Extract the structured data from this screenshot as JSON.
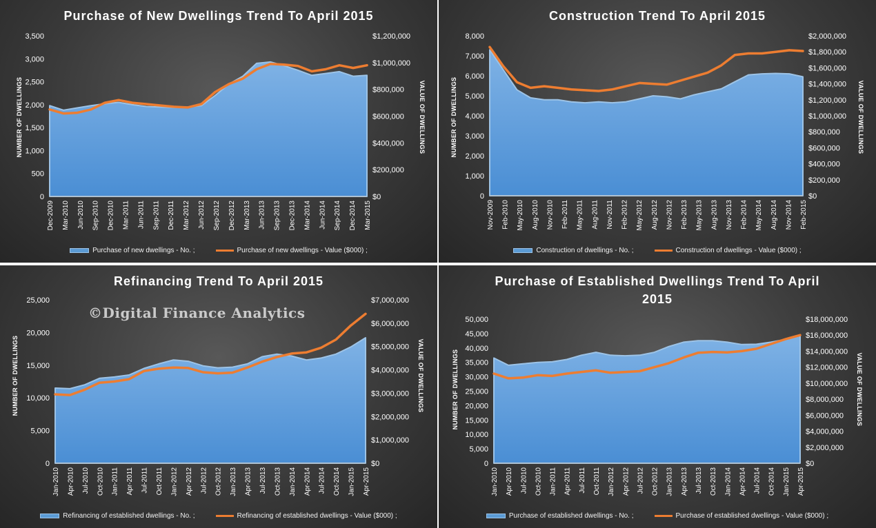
{
  "watermark": "©Digital Finance Analytics",
  "colors": {
    "area": "#5b9bd5",
    "area_edge": "#9dc3e6",
    "line": "#ed7d31",
    "text": "#ffffff"
  },
  "chart_data": [
    {
      "type": "area",
      "title": "Purchase of New Dwellings Trend To April 2015",
      "ylabel": "NUMBER OF DWELLINGS",
      "y2label": "VALUE OF DWELLINGS",
      "ylim": [
        0,
        3500
      ],
      "yticks": [
        0,
        500,
        1000,
        1500,
        2000,
        2500,
        3000,
        3500
      ],
      "y2lim": [
        0,
        1200000
      ],
      "y2ticks": [
        "$0",
        "$200,000",
        "$400,000",
        "$600,000",
        "$800,000",
        "$1,000,000",
        "$1,200,000"
      ],
      "y2tick_values": [
        0,
        200000,
        400000,
        600000,
        800000,
        1000000,
        1200000
      ],
      "xticks": [
        "Dec-2009",
        "Mar-2010",
        "Jun-2010",
        "Sep-2010",
        "Dec-2010",
        "Mar-2011",
        "Jun-2011",
        "Sep-2011",
        "Dec-2011",
        "Mar-2012",
        "Jun-2012",
        "Sep-2012",
        "Dec-2012",
        "Mar-2013",
        "Jun-2013",
        "Sep-2013",
        "Dec-2013",
        "Mar-2014",
        "Jun-2014",
        "Sep-2014",
        "Dec-2014",
        "Mar-2015"
      ],
      "series": [
        {
          "name": "Purchase of new dwellings - No. ;",
          "kind": "area",
          "axis": "left",
          "values": [
            1980,
            1880,
            1930,
            1980,
            2020,
            2050,
            2000,
            1960,
            1950,
            1940,
            1950,
            1980,
            2200,
            2450,
            2620,
            2900,
            2930,
            2850,
            2750,
            2640,
            2680,
            2720,
            2620,
            2640
          ]
        },
        {
          "name": "Purchase of new dwellings - Value ($000) ;",
          "kind": "line",
          "axis": "right",
          "values": [
            650000,
            620000,
            625000,
            650000,
            700000,
            720000,
            700000,
            690000,
            680000,
            670000,
            665000,
            690000,
            780000,
            840000,
            880000,
            950000,
            990000,
            985000,
            975000,
            935000,
            950000,
            980000,
            960000,
            980000
          ]
        }
      ],
      "legend": "bottom"
    },
    {
      "type": "area",
      "title": "Construction Trend To April 2015",
      "ylabel": "NUMBER OF DWELLINGS",
      "y2label": "VALUE OF DWELLINGS",
      "ylim": [
        0,
        8000
      ],
      "yticks": [
        0,
        1000,
        2000,
        3000,
        4000,
        5000,
        6000,
        7000,
        8000
      ],
      "y2lim": [
        0,
        2000000
      ],
      "y2ticks": [
        "$0",
        "$200,000",
        "$400,000",
        "$600,000",
        "$800,000",
        "$1,000,000",
        "$1,200,000",
        "$1,400,000",
        "$1,600,000",
        "$1,800,000",
        "$2,000,000"
      ],
      "y2tick_values": [
        0,
        200000,
        400000,
        600000,
        800000,
        1000000,
        1200000,
        1400000,
        1600000,
        1800000,
        2000000
      ],
      "xticks": [
        "Nov-2009",
        "Feb-2010",
        "May-2010",
        "Aug-2010",
        "Nov-2010",
        "Feb-2011",
        "May-2011",
        "Aug-2011",
        "Nov-2011",
        "Feb-2012",
        "May-2012",
        "Aug-2012",
        "Nov-2012",
        "Feb-2013",
        "May-2013",
        "Aug-2013",
        "Nov-2013",
        "Feb-2014",
        "May-2014",
        "Aug-2014",
        "Nov-2014",
        "Feb-2015"
      ],
      "series": [
        {
          "name": "Construction of dwellings - No. ;",
          "kind": "area",
          "axis": "left",
          "values": [
            7300,
            6300,
            5300,
            4900,
            4800,
            4800,
            4700,
            4650,
            4700,
            4650,
            4700,
            4850,
            5000,
            4950,
            4850,
            5050,
            5200,
            5350,
            5700,
            6050,
            6100,
            6120,
            6100,
            5950
          ]
        },
        {
          "name": "Construction of dwellings - Value ($000) ;",
          "kind": "line",
          "axis": "right",
          "values": [
            1860000,
            1620000,
            1420000,
            1350000,
            1370000,
            1350000,
            1330000,
            1320000,
            1310000,
            1330000,
            1370000,
            1410000,
            1400000,
            1390000,
            1440000,
            1490000,
            1540000,
            1630000,
            1760000,
            1780000,
            1780000,
            1800000,
            1820000,
            1810000
          ]
        }
      ],
      "legend": "bottom"
    },
    {
      "type": "area",
      "title": "Refinancing Trend To April 2015",
      "ylabel": "NUMBER OF DWELLINGS",
      "y2label": "VALUE OF DWELLINGS",
      "ylim": [
        0,
        25000
      ],
      "yticks": [
        0,
        5000,
        10000,
        15000,
        20000,
        25000
      ],
      "ytick_labels": [
        "0",
        "5,000",
        "10,000",
        "15,000",
        "20,000",
        "25,000"
      ],
      "y2lim": [
        0,
        7000000
      ],
      "y2ticks": [
        "$0",
        "$1,000,000",
        "$2,000,000",
        "$3,000,000",
        "$4,000,000",
        "$5,000,000",
        "$6,000,000",
        "$7,000,000"
      ],
      "y2tick_values": [
        0,
        1000000,
        2000000,
        3000000,
        4000000,
        5000000,
        6000000,
        7000000
      ],
      "xticks": [
        "Jan-2010",
        "Apr-2010",
        "Jul-2010",
        "Oct-2010",
        "Jan-2011",
        "Apr-2011",
        "Jul-2011",
        "Oct-2011",
        "Jan-2012",
        "Apr-2012",
        "Jul-2012",
        "Oct-2012",
        "Jan-2013",
        "Apr-2013",
        "Jul-2013",
        "Oct-2013",
        "Jan-2014",
        "Apr-2014",
        "Jul-2014",
        "Oct-2014",
        "Jan-2015",
        "Apr-2015"
      ],
      "series": [
        {
          "name": "Refinancing of established dwellings - No. ;",
          "kind": "area",
          "axis": "left",
          "values": [
            11500,
            11400,
            12000,
            13000,
            13200,
            13500,
            14500,
            15200,
            15800,
            15600,
            14900,
            14600,
            14700,
            15200,
            16300,
            16700,
            16400,
            15800,
            16100,
            16700,
            17800,
            19200
          ]
        },
        {
          "name": "Refinancing of established dwellings - Value ($000) ;",
          "kind": "line",
          "axis": "right",
          "values": [
            2950000,
            2920000,
            3150000,
            3450000,
            3500000,
            3600000,
            3950000,
            4050000,
            4100000,
            4080000,
            3900000,
            3850000,
            3880000,
            4100000,
            4350000,
            4550000,
            4700000,
            4750000,
            4950000,
            5300000,
            5900000,
            6400000
          ]
        }
      ],
      "legend": "bottom"
    },
    {
      "type": "area",
      "title": "Purchase of Established Dwellings Trend To April 2015",
      "ylabel": "NUMBER OF DWELLINGS",
      "y2label": "VALUE OF DWELLINGS",
      "ylim": [
        0,
        50000
      ],
      "yticks": [
        0,
        5000,
        10000,
        15000,
        20000,
        25000,
        30000,
        35000,
        40000,
        45000,
        50000
      ],
      "ytick_labels": [
        "0",
        "5,000",
        "10,000",
        "15,000",
        "20,000",
        "25,000",
        "30,000",
        "35,000",
        "40,000",
        "45,000",
        "50,000"
      ],
      "y2lim": [
        0,
        18000000
      ],
      "y2ticks": [
        "$0",
        "$2,000,000",
        "$4,000,000",
        "$6,000,000",
        "$8,000,000",
        "$10,000,000",
        "$12,000,000",
        "$14,000,000",
        "$16,000,000",
        "$18,000,000"
      ],
      "y2tick_values": [
        0,
        2000000,
        4000000,
        6000000,
        8000000,
        10000000,
        12000000,
        14000000,
        16000000,
        18000000
      ],
      "xticks": [
        "Jan-2010",
        "Apr-2010",
        "Jul-2010",
        "Oct-2010",
        "Jan-2011",
        "Apr-2011",
        "Jul-2011",
        "Oct-2011",
        "Jan-2012",
        "Apr-2012",
        "Jul-2012",
        "Oct-2012",
        "Jan-2013",
        "Apr-2013",
        "Jul-2013",
        "Oct-2013",
        "Jan-2014",
        "Apr-2014",
        "Jul-2014",
        "Oct-2014",
        "Jan-2015",
        "Apr-2015"
      ],
      "series": [
        {
          "name": "Purchase of established dwellings - No. ;",
          "kind": "area",
          "axis": "left",
          "values": [
            36500,
            34000,
            34500,
            35000,
            35200,
            36000,
            37500,
            38500,
            37500,
            37300,
            37500,
            38500,
            40500,
            42000,
            42500,
            42500,
            42000,
            41200,
            41300,
            42000,
            43000,
            44500
          ]
        },
        {
          "name": "Purchase of established dwellings - Value ($000) ;",
          "kind": "line",
          "axis": "right",
          "values": [
            11200000,
            10600000,
            10700000,
            11000000,
            10900000,
            11200000,
            11400000,
            11600000,
            11300000,
            11400000,
            11500000,
            12000000,
            12500000,
            13200000,
            13800000,
            13900000,
            13850000,
            14000000,
            14300000,
            14900000,
            15500000,
            16000000
          ]
        }
      ],
      "legend": "bottom"
    }
  ]
}
